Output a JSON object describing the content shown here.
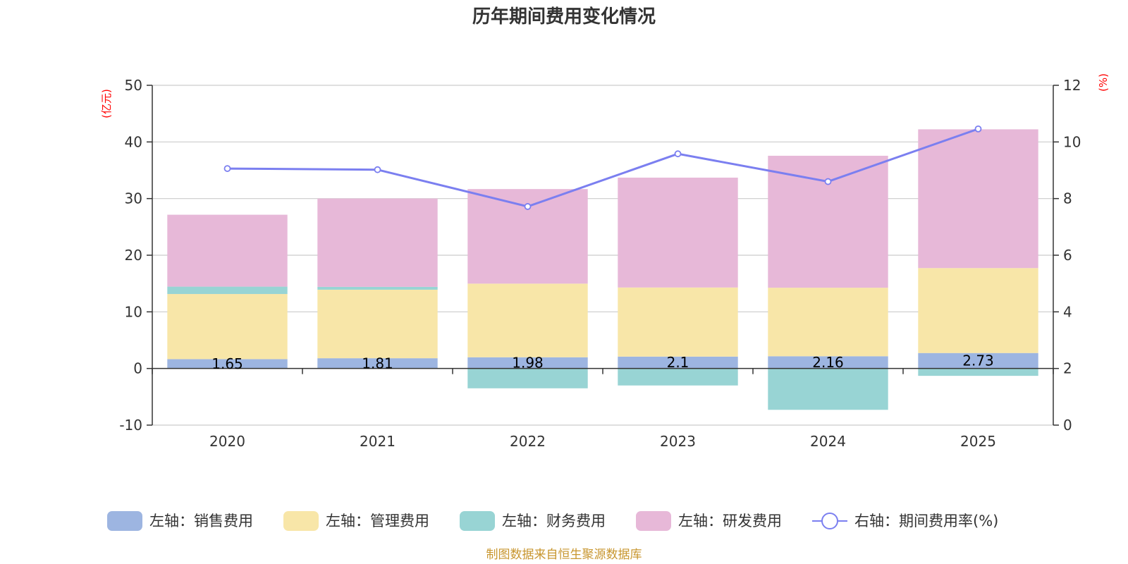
{
  "chart_data": {
    "type": "bar",
    "stacked": true,
    "title": "历年期间费用变化情况",
    "categories": [
      "2020",
      "2021",
      "2022",
      "2023",
      "2024",
      "2025"
    ],
    "left_axis": {
      "unit": "(亿元)",
      "ylim": [
        -10,
        50
      ],
      "ticks": [
        "50",
        "40",
        "30",
        "20",
        "10",
        "0",
        "-10"
      ]
    },
    "right_axis": {
      "unit": "(%)",
      "ylim": [
        0,
        12
      ],
      "ticks": [
        "12",
        "10",
        "8",
        "6",
        "4",
        "2",
        "0"
      ]
    },
    "series": [
      {
        "name": "左轴：销售费用",
        "type": "bar",
        "color": "#9db5e1",
        "values": [
          1.65,
          1.81,
          1.98,
          2.1,
          2.16,
          2.73
        ],
        "labels": [
          "1.65",
          "1.81",
          "1.98",
          "2.1",
          "2.16",
          "2.73"
        ]
      },
      {
        "name": "左轴：管理费用",
        "type": "bar",
        "color": "#f8e6a8",
        "values": [
          11.5,
          12.1,
          13.0,
          12.2,
          12.1,
          15.0
        ]
      },
      {
        "name": "左轴：财务费用",
        "type": "bar",
        "color": "#98d4d4",
        "values": [
          1.3,
          0.5,
          -3.5,
          -3.0,
          -7.3,
          -1.3
        ]
      },
      {
        "name": "左轴：研发费用",
        "type": "bar",
        "color": "#e7b8d8",
        "values": [
          12.7,
          15.6,
          16.7,
          19.4,
          23.3,
          24.5
        ]
      },
      {
        "name": "右轴：期间费用率(%)",
        "type": "line",
        "axis": "right",
        "color": "#7b7ff0",
        "values": [
          9.06,
          9.02,
          7.72,
          9.58,
          8.6,
          10.46
        ]
      }
    ],
    "grid": true
  },
  "source": "制图数据来自恒生聚源数据库"
}
